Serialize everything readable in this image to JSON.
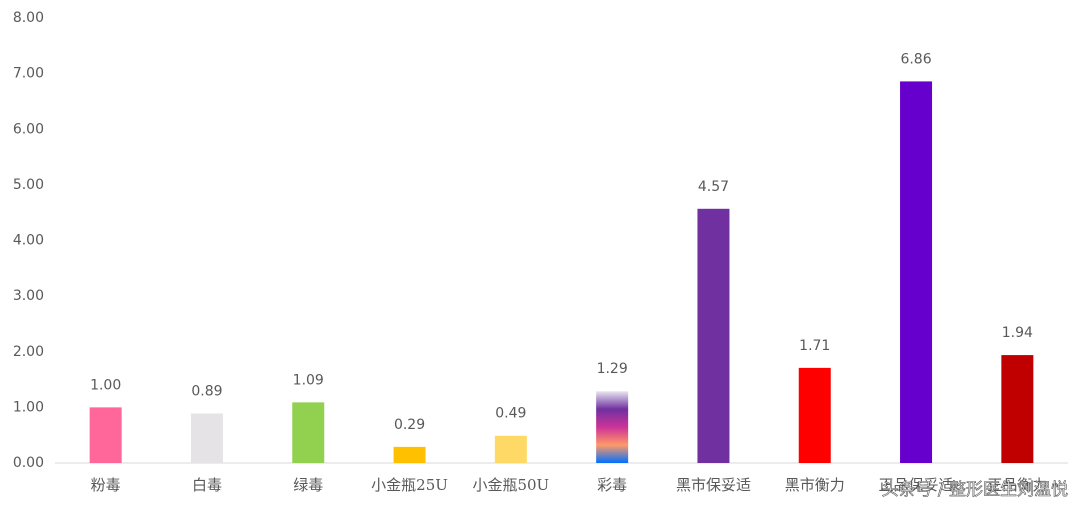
{
  "chart_data": {
    "type": "bar",
    "categories": [
      "粉毒",
      "白毒",
      "绿毒",
      "小金瓶25U",
      "小金瓶50U",
      "彩毒",
      "黑市保妥适",
      "黑市衡力",
      "正品保妥适",
      "正品衡力"
    ],
    "values": [
      1.0,
      0.89,
      1.09,
      0.29,
      0.49,
      1.29,
      4.57,
      1.71,
      6.86,
      1.94
    ],
    "value_labels": [
      "1.00",
      "0.89",
      "1.09",
      "0.29",
      "0.49",
      "1.29",
      "4.57",
      "1.71",
      "6.86",
      "1.94"
    ],
    "colors": [
      "#ff6699",
      "#e6e3e6",
      "#92d050",
      "#ffc000",
      "#ffd966",
      [
        "#0070ff",
        "#ff9966",
        "#cc3399",
        "#7030a0",
        "#e6e6f0"
      ],
      "#7030a0",
      "#ff0000",
      "#6600cc",
      "#c00000"
    ],
    "ylim": [
      0,
      8
    ],
    "yticks": [
      {
        "value": 0,
        "label": "0.00"
      },
      {
        "value": 1,
        "label": "1.00"
      },
      {
        "value": 2,
        "label": "2.00"
      },
      {
        "value": 3,
        "label": "3.00"
      },
      {
        "value": 4,
        "label": "4.00"
      },
      {
        "value": 5,
        "label": "5.00"
      },
      {
        "value": 6,
        "label": "6.00"
      },
      {
        "value": 7,
        "label": "7.00"
      },
      {
        "value": 8,
        "label": "8.00"
      }
    ],
    "grid": false,
    "watermark": "头条号 / 整形医生刘温悦"
  }
}
